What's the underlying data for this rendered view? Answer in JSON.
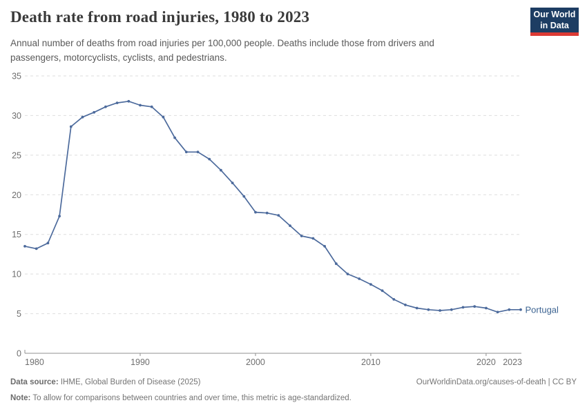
{
  "header": {
    "title": "Death rate from road injuries, 1980 to 2023",
    "subtitle": "Annual number of deaths from road injuries per 100,000 people. Deaths include those from drivers and passengers, motorcyclists, cyclists, and pedestrians.",
    "logo_line1": "Our World",
    "logo_line2": "in Data"
  },
  "chart_data": {
    "type": "line",
    "title": "Death rate from road injuries, 1980 to 2023",
    "xlabel": "",
    "ylabel": "",
    "x": [
      1980,
      1981,
      1982,
      1983,
      1984,
      1985,
      1986,
      1987,
      1988,
      1989,
      1990,
      1991,
      1992,
      1993,
      1994,
      1995,
      1996,
      1997,
      1998,
      1999,
      2000,
      2001,
      2002,
      2003,
      2004,
      2005,
      2006,
      2007,
      2008,
      2009,
      2010,
      2011,
      2012,
      2013,
      2014,
      2015,
      2016,
      2017,
      2018,
      2019,
      2020,
      2021,
      2022,
      2023
    ],
    "series": [
      {
        "name": "Portugal",
        "color": "#4c6a9c",
        "label_color": "#3d6492",
        "values": [
          13.5,
          13.2,
          13.9,
          17.3,
          28.6,
          29.8,
          30.4,
          31.1,
          31.6,
          31.8,
          31.3,
          31.1,
          29.8,
          27.2,
          25.4,
          25.4,
          24.5,
          23.1,
          21.5,
          19.8,
          17.8,
          17.7,
          17.4,
          16.1,
          14.8,
          14.5,
          13.5,
          11.3,
          10.0,
          9.4,
          8.7,
          7.9,
          6.8,
          6.1,
          5.7,
          5.5,
          5.4,
          5.5,
          5.8,
          5.9,
          5.7,
          5.2,
          5.5,
          5.5
        ]
      }
    ],
    "ylim": [
      0,
      35
    ],
    "yticks": [
      0,
      5,
      10,
      15,
      20,
      25,
      30,
      35
    ],
    "xticks": [
      1980,
      1990,
      2000,
      2010,
      2020,
      2023
    ],
    "grid": "horizontal-dashed",
    "legend": "end-of-line entity label"
  },
  "footer": {
    "source_label": "Data source:",
    "source_text": " IHME, Global Burden of Disease (2025)",
    "url_text": "OurWorldinData.org/causes-of-death | CC BY",
    "note_label": "Note:",
    "note_text": " To allow for comparisons between countries and over time, this metric is age-standardized."
  },
  "colors": {
    "line": "#4c6a9c",
    "gridline": "#dedede",
    "axis": "#8f8f8f",
    "tick_label": "#6e6e6e",
    "logo_bg": "#1d3d63",
    "logo_bar": "#dc3a34"
  }
}
